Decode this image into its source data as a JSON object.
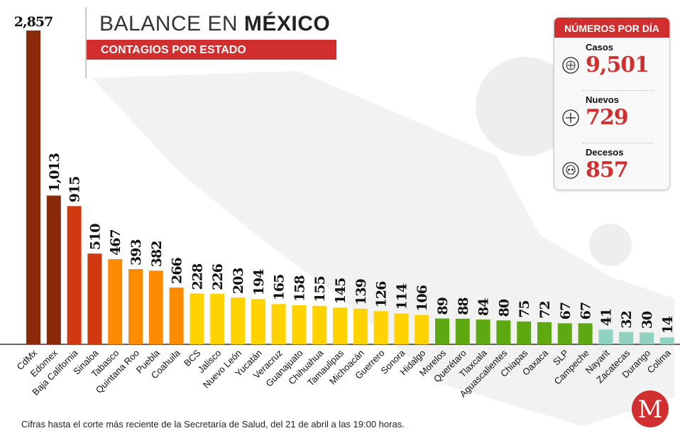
{
  "header": {
    "title_light": "BALANCE EN ",
    "title_bold": "MÉXICO",
    "subtitle": "CONTAGIOS POR ESTADO"
  },
  "card": {
    "title": "NÚMEROS POR DÍA",
    "stats": [
      {
        "label": "Casos",
        "value": "9,501",
        "icon": "virus-icon"
      },
      {
        "label": "Nuevos",
        "value": "729",
        "icon": "plus-circle-icon"
      },
      {
        "label": "Decesos",
        "value": "857",
        "icon": "skull-icon"
      }
    ]
  },
  "footer": {
    "note": "Cifras hasta el corte más reciente de la Secretaría de Salud, del 21 de abril a las 19:00 horas.",
    "logo": "M"
  },
  "colors": {
    "accent": "#d12f2f",
    "tier1": "#8b2a0b",
    "tier2": "#d13a10",
    "tier3": "#ff8c00",
    "tier4": "#ffd200",
    "tier5": "#5ea812",
    "tier6": "#90d1c0"
  },
  "chart_data": {
    "type": "bar",
    "title": "BALANCE EN MÉXICO — CONTAGIOS POR ESTADO",
    "xlabel": "",
    "ylabel": "",
    "categories": [
      "CdMx",
      "Edomex",
      "Baja California",
      "Sinaloa",
      "Tabasco",
      "Quintana Roo",
      "Puebla",
      "Coahuila",
      "BCS",
      "Jalisco",
      "Nuevo León",
      "Yucatán",
      "Veracruz",
      "Guanajuato",
      "Chihuahua",
      "Tamaulipas",
      "Michoacán",
      "Guerrero",
      "Sonora",
      "Hidalgo",
      "Morelos",
      "Querétaro",
      "Tlaxcala",
      "Aguascalientes",
      "Chiapas",
      "Oaxaca",
      "SLP",
      "Campeche",
      "Nayarit",
      "Zacatecas",
      "Durango",
      "Colima"
    ],
    "values": [
      2857,
      1013,
      915,
      510,
      467,
      393,
      382,
      266,
      228,
      226,
      203,
      194,
      165,
      158,
      155,
      145,
      139,
      126,
      114,
      106,
      89,
      88,
      84,
      80,
      75,
      72,
      67,
      67,
      41,
      32,
      30,
      14
    ],
    "labels": [
      "2,857",
      "1,013",
      "915",
      "510",
      "467",
      "393",
      "382",
      "266",
      "228",
      "226",
      "203",
      "194",
      "165",
      "158",
      "155",
      "145",
      "139",
      "126",
      "114",
      "106",
      "89",
      "88",
      "84",
      "80",
      "75",
      "72",
      "67",
      "67",
      "41",
      "32",
      "30",
      "14"
    ],
    "tiers": [
      1,
      1,
      2,
      2,
      3,
      3,
      3,
      3,
      4,
      4,
      4,
      4,
      4,
      4,
      4,
      4,
      4,
      4,
      4,
      4,
      5,
      5,
      5,
      5,
      5,
      5,
      5,
      5,
      6,
      6,
      6,
      6
    ],
    "grid": false
  }
}
